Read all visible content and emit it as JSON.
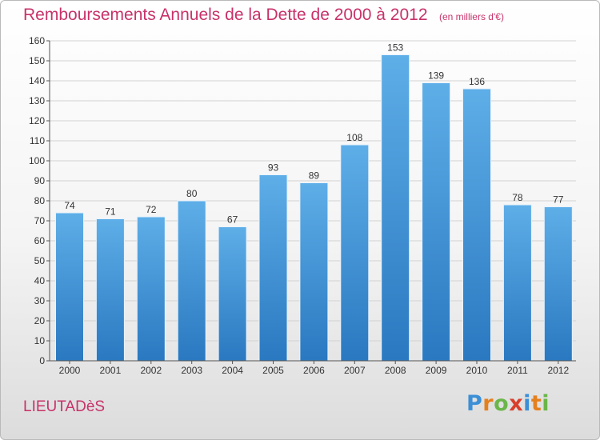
{
  "title": "Remboursements Annuels de la Dette de 2000 à 2012",
  "units": "(en milliers d'€)",
  "commune": "LIEUTADèS",
  "logo": {
    "text": "Proxiti",
    "letters": [
      "P",
      "r",
      "o",
      "x",
      "i",
      "t",
      "i"
    ],
    "colors": [
      "#3b8fd6",
      "#e5801f",
      "#6bb64a",
      "#d8402c",
      "#3b8fd6",
      "#e5801f",
      "#6bb64a"
    ]
  },
  "colors": {
    "title": "#c8326a",
    "bar_top": "#5eaee8",
    "bar_bottom": "#2a78c0",
    "grid": "#d2d2d2",
    "axis_text": "#333333"
  },
  "chart_data": {
    "type": "bar",
    "categories": [
      "2000",
      "2001",
      "2002",
      "2003",
      "2004",
      "2005",
      "2006",
      "2007",
      "2008",
      "2009",
      "2010",
      "2011",
      "2012"
    ],
    "values": [
      74,
      71,
      72,
      80,
      67,
      93,
      89,
      108,
      153,
      139,
      136,
      78,
      77
    ],
    "ylim": [
      0,
      160
    ],
    "yticks": [
      0,
      10,
      20,
      30,
      40,
      50,
      60,
      70,
      80,
      90,
      100,
      110,
      120,
      130,
      140,
      150,
      160
    ],
    "grid": true,
    "data_labels": true
  }
}
